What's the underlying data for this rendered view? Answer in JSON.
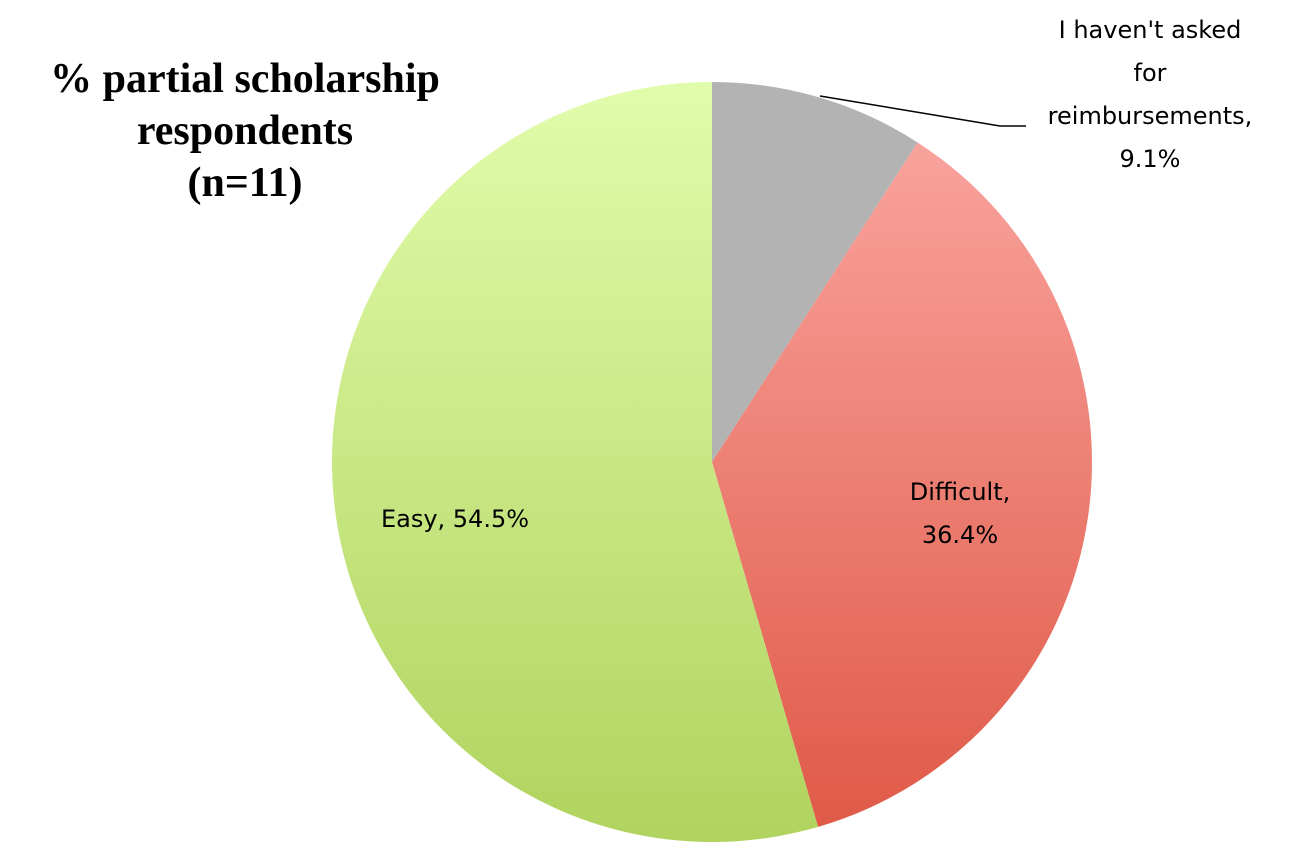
{
  "chart_data": {
    "type": "pie",
    "title": [
      "% partial scholarship",
      "respondents",
      "(n=11)"
    ],
    "values": [
      9.1,
      36.4,
      54.5
    ],
    "value_labels": [
      "I haven't asked for reimbursements, 9.1%",
      "Difficult, 36.4%",
      "Easy, 54.5%"
    ],
    "colors": [
      [
        "#b3b3b3",
        "#b3b3b3"
      ],
      [
        "#fba9a4",
        "#df5846"
      ],
      [
        "#e1fcab",
        "#b0d35e"
      ]
    ]
  }
}
